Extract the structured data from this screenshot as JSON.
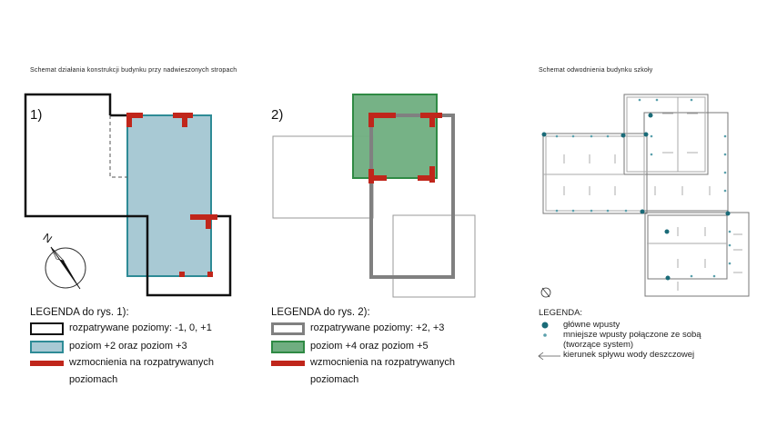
{
  "left_title": "Schemat działania konstrukcji budynku przy nadwieszonych stropach",
  "right_title": "Schemat odwodnienia budynku szkoły",
  "fig1": {
    "number": "1)",
    "legend_title": "LEGENDA do rys. 1):",
    "items": [
      "rozpatrywane poziomy: -1, 0, +1",
      "poziom +2 oraz poziom +3",
      "wzmocnienia na rozpatrywanych",
      "poziomach"
    ]
  },
  "fig2": {
    "number": "2)",
    "legend_title": "LEGENDA do rys. 2):",
    "items": [
      "rozpatrywane poziomy: +2, +3",
      "poziom +4 oraz poziom +5",
      "wzmocnienia na rozpatrywanych",
      "poziomach"
    ]
  },
  "compass_label": "N",
  "drainage": {
    "legend_title": "LEGENDA:",
    "items": [
      "główne wpusty",
      "mniejsze wpusty połączone ze sobą",
      "(tworzące system)",
      "kierunek spływu wody deszczowej"
    ]
  },
  "colors": {
    "blue_fill": "#a8c9d4",
    "blue_stroke": "#2e8b96",
    "green_fill": "#6fae80",
    "green_stroke": "#2f8a44",
    "red": "#c0261b",
    "dark_teal": "#1a6b78",
    "light_teal": "#5aa0ac"
  }
}
